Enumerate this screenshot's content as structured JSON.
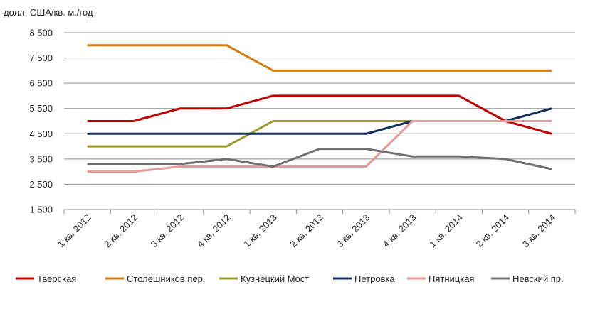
{
  "chart_data": {
    "type": "line",
    "ylabel": "долл. США/кв. м./год",
    "ylim": [
      1500,
      8500
    ],
    "yticks": [
      1500,
      2500,
      3500,
      4500,
      5500,
      6500,
      7500,
      8500
    ],
    "ytick_labels": [
      "1 500",
      "2 500",
      "3 500",
      "4 500",
      "5 500",
      "6 500",
      "7 500",
      "8 500"
    ],
    "categories": [
      "1 кв. 2012",
      "2 кв. 2012",
      "3 кв. 2012",
      "4 кв. 2012",
      "1 кв. 2013",
      "2 кв. 2013",
      "3 кв. 2013",
      "4 кв. 2013",
      "1 кв. 2014",
      "2 кв. 2014",
      "3 кв. 2014"
    ],
    "grid": true,
    "legend_position": "bottom",
    "series": [
      {
        "name": "Тверская",
        "color": "#c00000",
        "values": [
          5000,
          5000,
          5500,
          5500,
          6000,
          6000,
          6000,
          6000,
          6000,
          5000,
          4500
        ]
      },
      {
        "name": "Столешников пер.",
        "color": "#d07a10",
        "values": [
          8000,
          8000,
          8000,
          8000,
          7000,
          7000,
          7000,
          7000,
          7000,
          7000,
          7000
        ]
      },
      {
        "name": "Кузнецкий Мост",
        "color": "#9a9a2e",
        "values": [
          4000,
          4000,
          4000,
          4000,
          5000,
          5000,
          5000,
          5000,
          5000,
          5000,
          5000
        ]
      },
      {
        "name": "Петровка",
        "color": "#14305a",
        "values": [
          4500,
          4500,
          4500,
          4500,
          4500,
          4500,
          4500,
          5000,
          5000,
          5000,
          5500
        ]
      },
      {
        "name": "Пятницкая",
        "color": "#e89a9a",
        "values": [
          3000,
          3000,
          3200,
          3200,
          3200,
          3200,
          3200,
          5000,
          5000,
          5000,
          5000
        ]
      },
      {
        "name": "Невский пр.",
        "color": "#707070",
        "values": [
          3300,
          3300,
          3300,
          3500,
          3200,
          3900,
          3900,
          3600,
          3600,
          3500,
          3100
        ]
      }
    ]
  }
}
